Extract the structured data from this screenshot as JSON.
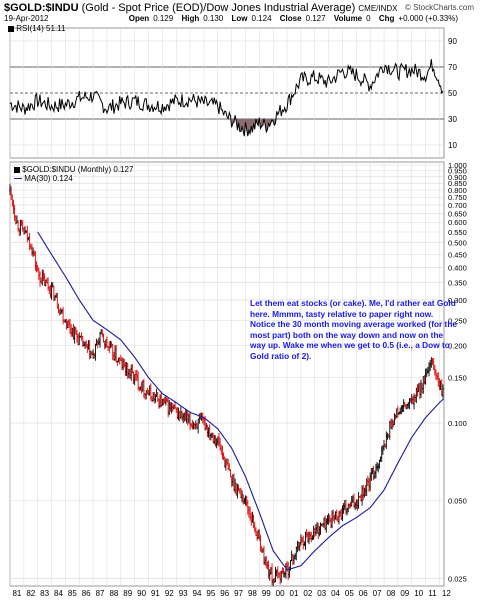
{
  "header": {
    "symbol": "$GOLD:$INDU",
    "description": "(Gold - Spot Price (EOD)/Dow Jones Industrial Average)",
    "exchange": "CME/INDX",
    "credit": "© StockCharts.com",
    "date": "19-Apr-2012",
    "open_label": "Open",
    "open": "0.129",
    "high_label": "High",
    "high": "0.130",
    "low_label": "Low",
    "low": "0.124",
    "close_label": "Close",
    "close": "0.127",
    "volume_label": "Volume",
    "volume": "0",
    "chg_label": "Chg",
    "chg": "+0.000 (+0.33%)"
  },
  "rsi_legend": "RSI(14) 51.11",
  "main_legend": {
    "price": "$GOLD:$INDU (Monthly) 0.127",
    "ma": "MA(30) 0.124"
  },
  "annotation": "Let them eat stocks (or cake). Me, I'd rather eat Gold here. Mmmm, tasty relative to paper right now. Notice the 30 month moving average worked (for the most part) both on the way down and now on the way up. Wake me when we get to 0.5 (i.e., a Dow to Gold ratio of 2).",
  "colors": {
    "up_bar": "#000000",
    "down_bar": "#e00000",
    "ma_line": "#1a1aa0",
    "rsi_line": "#000000",
    "rsi_oversold_fill": "#8b6b6b",
    "grid": "#d8d8d8",
    "annotation_text": "#1a1ae6"
  },
  "chart_data": [
    {
      "type": "line",
      "name": "RSI panel",
      "series_label": "RSI(14) 51.11",
      "x_range": [
        1981,
        2012.33
      ],
      "ylim": [
        0,
        100
      ],
      "yticks": [
        10,
        30,
        50,
        70,
        90
      ],
      "reference_lines": [
        30,
        50,
        70
      ],
      "x": [
        1981.0,
        1982.0,
        1983.0,
        1984.0,
        1985.0,
        1986.0,
        1987.0,
        1988.0,
        1989.0,
        1990.0,
        1991.0,
        1992.0,
        1993.0,
        1994.0,
        1995.0,
        1996.0,
        1996.5,
        1997.0,
        1997.5,
        1998.0,
        1998.5,
        1999.0,
        1999.5,
        2000.0,
        2001.0,
        2002.0,
        2003.0,
        2004.0,
        2005.0,
        2006.0,
        2007.0,
        2008.0,
        2009.0,
        2010.0,
        2011.0,
        2011.5,
        2012.0,
        2012.3
      ],
      "values": [
        42,
        38,
        44,
        40,
        41,
        46,
        48,
        38,
        42,
        44,
        41,
        40,
        44,
        45,
        42,
        40,
        33,
        29,
        25,
        22,
        23,
        27,
        25,
        30,
        42,
        60,
        62,
        58,
        67,
        64,
        56,
        72,
        66,
        68,
        64,
        72,
        60,
        51
      ]
    },
    {
      "type": "line",
      "name": "Price panel (log scale)",
      "x_range": [
        1981,
        2012.33
      ],
      "x_tick_labels": [
        "81",
        "82",
        "83",
        "84",
        "85",
        "86",
        "87",
        "88",
        "89",
        "90",
        "91",
        "92",
        "93",
        "94",
        "95",
        "96",
        "97",
        "98",
        "99",
        "00",
        "01",
        "02",
        "03",
        "04",
        "05",
        "06",
        "07",
        "08",
        "09",
        "10",
        "11",
        "12"
      ],
      "y_scale": "log",
      "ylim": [
        0.024,
        1.0
      ],
      "yticks": [
        0.025,
        0.05,
        0.1,
        0.15,
        0.2,
        0.25,
        0.3,
        0.35,
        0.4,
        0.45,
        0.5,
        0.55,
        0.6,
        0.65,
        0.7,
        0.75,
        0.8,
        0.85,
        0.9,
        0.95,
        1.0
      ],
      "ytick_labels": [
        "0.025",
        "0.050",
        "0.100",
        "0.150",
        "0.200",
        "0.250",
        "0.300",
        "0.350",
        "0.400",
        "0.450",
        "0.500",
        "0.550",
        "0.600",
        "0.650",
        "0.700",
        "0.750",
        "0.800",
        "0.850",
        "0.900",
        "0.950",
        "1.000"
      ],
      "series": [
        {
          "name": "$GOLD:$INDU (Monthly)",
          "x": [
            1981.0,
            1981.5,
            1982.0,
            1982.5,
            1983.0,
            1983.5,
            1984.0,
            1985.0,
            1986.0,
            1987.0,
            1987.5,
            1988.0,
            1989.0,
            1990.0,
            1991.0,
            1992.0,
            1993.0,
            1994.0,
            1995.0,
            1996.0,
            1997.0,
            1998.0,
            1999.0,
            1999.5,
            2000.0,
            2000.5,
            2001.0,
            2002.0,
            2003.0,
            2004.0,
            2005.0,
            2006.0,
            2007.0,
            2008.0,
            2008.5,
            2009.0,
            2010.0,
            2011.0,
            2011.5,
            2012.0,
            2012.3
          ],
          "values": [
            0.8,
            0.6,
            0.55,
            0.5,
            0.38,
            0.35,
            0.33,
            0.25,
            0.21,
            0.18,
            0.22,
            0.2,
            0.17,
            0.15,
            0.13,
            0.12,
            0.11,
            0.1,
            0.1,
            0.085,
            0.06,
            0.05,
            0.035,
            0.028,
            0.025,
            0.026,
            0.027,
            0.035,
            0.038,
            0.042,
            0.045,
            0.05,
            0.06,
            0.08,
            0.1,
            0.11,
            0.12,
            0.15,
            0.17,
            0.14,
            0.127
          ]
        },
        {
          "name": "MA(30)",
          "x": [
            1983.0,
            1984.0,
            1985.0,
            1986.0,
            1987.0,
            1988.0,
            1989.0,
            1990.0,
            1991.0,
            1992.0,
            1993.0,
            1994.0,
            1995.0,
            1996.0,
            1997.0,
            1998.0,
            1999.0,
            2000.0,
            2001.0,
            2002.0,
            2003.0,
            2004.0,
            2005.0,
            2006.0,
            2007.0,
            2008.0,
            2009.0,
            2010.0,
            2011.0,
            2012.0,
            2012.3
          ],
          "values": [
            0.55,
            0.45,
            0.37,
            0.3,
            0.25,
            0.23,
            0.21,
            0.18,
            0.15,
            0.13,
            0.12,
            0.11,
            0.105,
            0.095,
            0.08,
            0.062,
            0.045,
            0.032,
            0.027,
            0.028,
            0.032,
            0.036,
            0.04,
            0.043,
            0.047,
            0.055,
            0.07,
            0.088,
            0.105,
            0.12,
            0.124
          ]
        }
      ]
    }
  ]
}
